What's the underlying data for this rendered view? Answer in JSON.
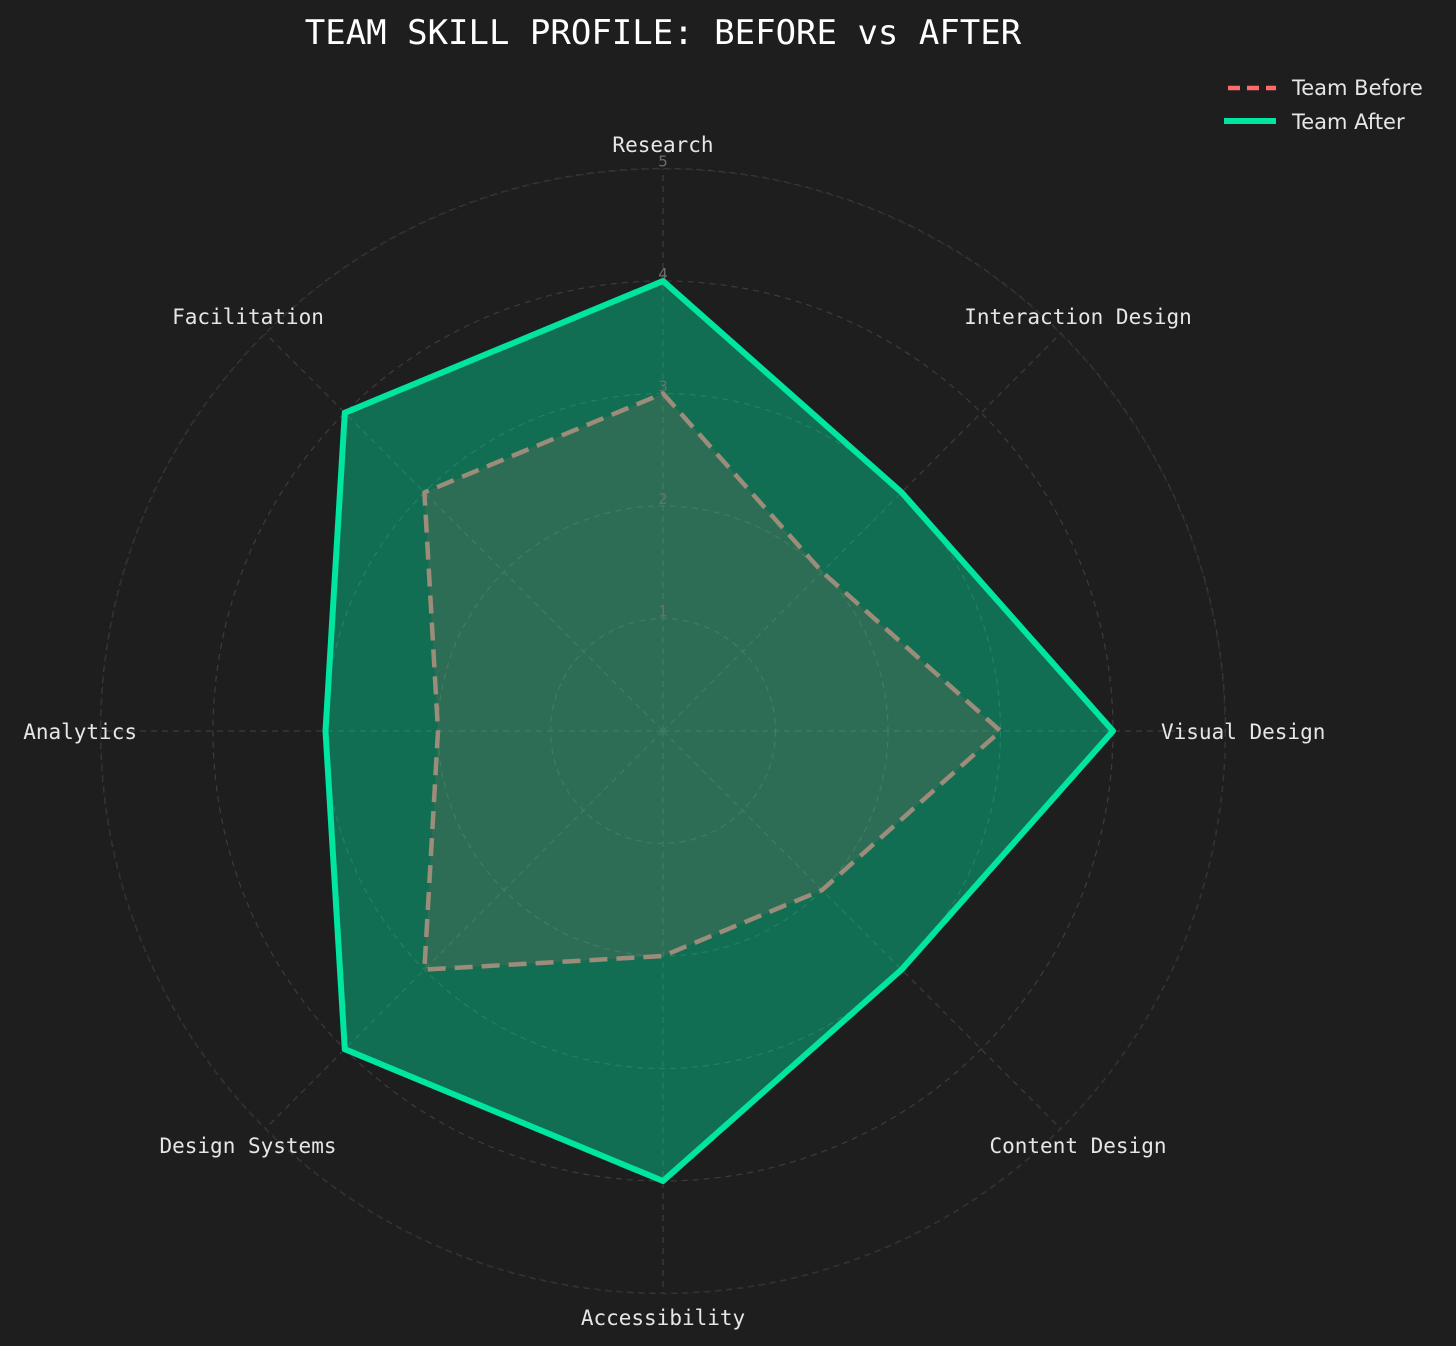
{
  "chart_data": {
    "type": "radar",
    "title": "TEAM SKILL PROFILE: BEFORE vs AFTER",
    "categories": [
      "Research",
      "Interaction Design",
      "Visual Design",
      "Content Design",
      "Accessibility",
      "Design Systems",
      "Analytics",
      "Facilitation"
    ],
    "rlim": [
      0,
      5
    ],
    "rticks": [
      "1",
      "2",
      "3",
      "4",
      "5"
    ],
    "grid": true,
    "legend_position": "top-right",
    "series": [
      {
        "name": "Team Before",
        "values": [
          3,
          2,
          3,
          2,
          2,
          3,
          2,
          3
        ],
        "color": "#ff6b6b",
        "line_style": "dashed"
      },
      {
        "name": "Team After",
        "values": [
          4,
          3,
          4,
          3,
          4,
          4,
          3,
          4
        ],
        "color": "#00e5a0",
        "line_style": "solid"
      }
    ]
  }
}
